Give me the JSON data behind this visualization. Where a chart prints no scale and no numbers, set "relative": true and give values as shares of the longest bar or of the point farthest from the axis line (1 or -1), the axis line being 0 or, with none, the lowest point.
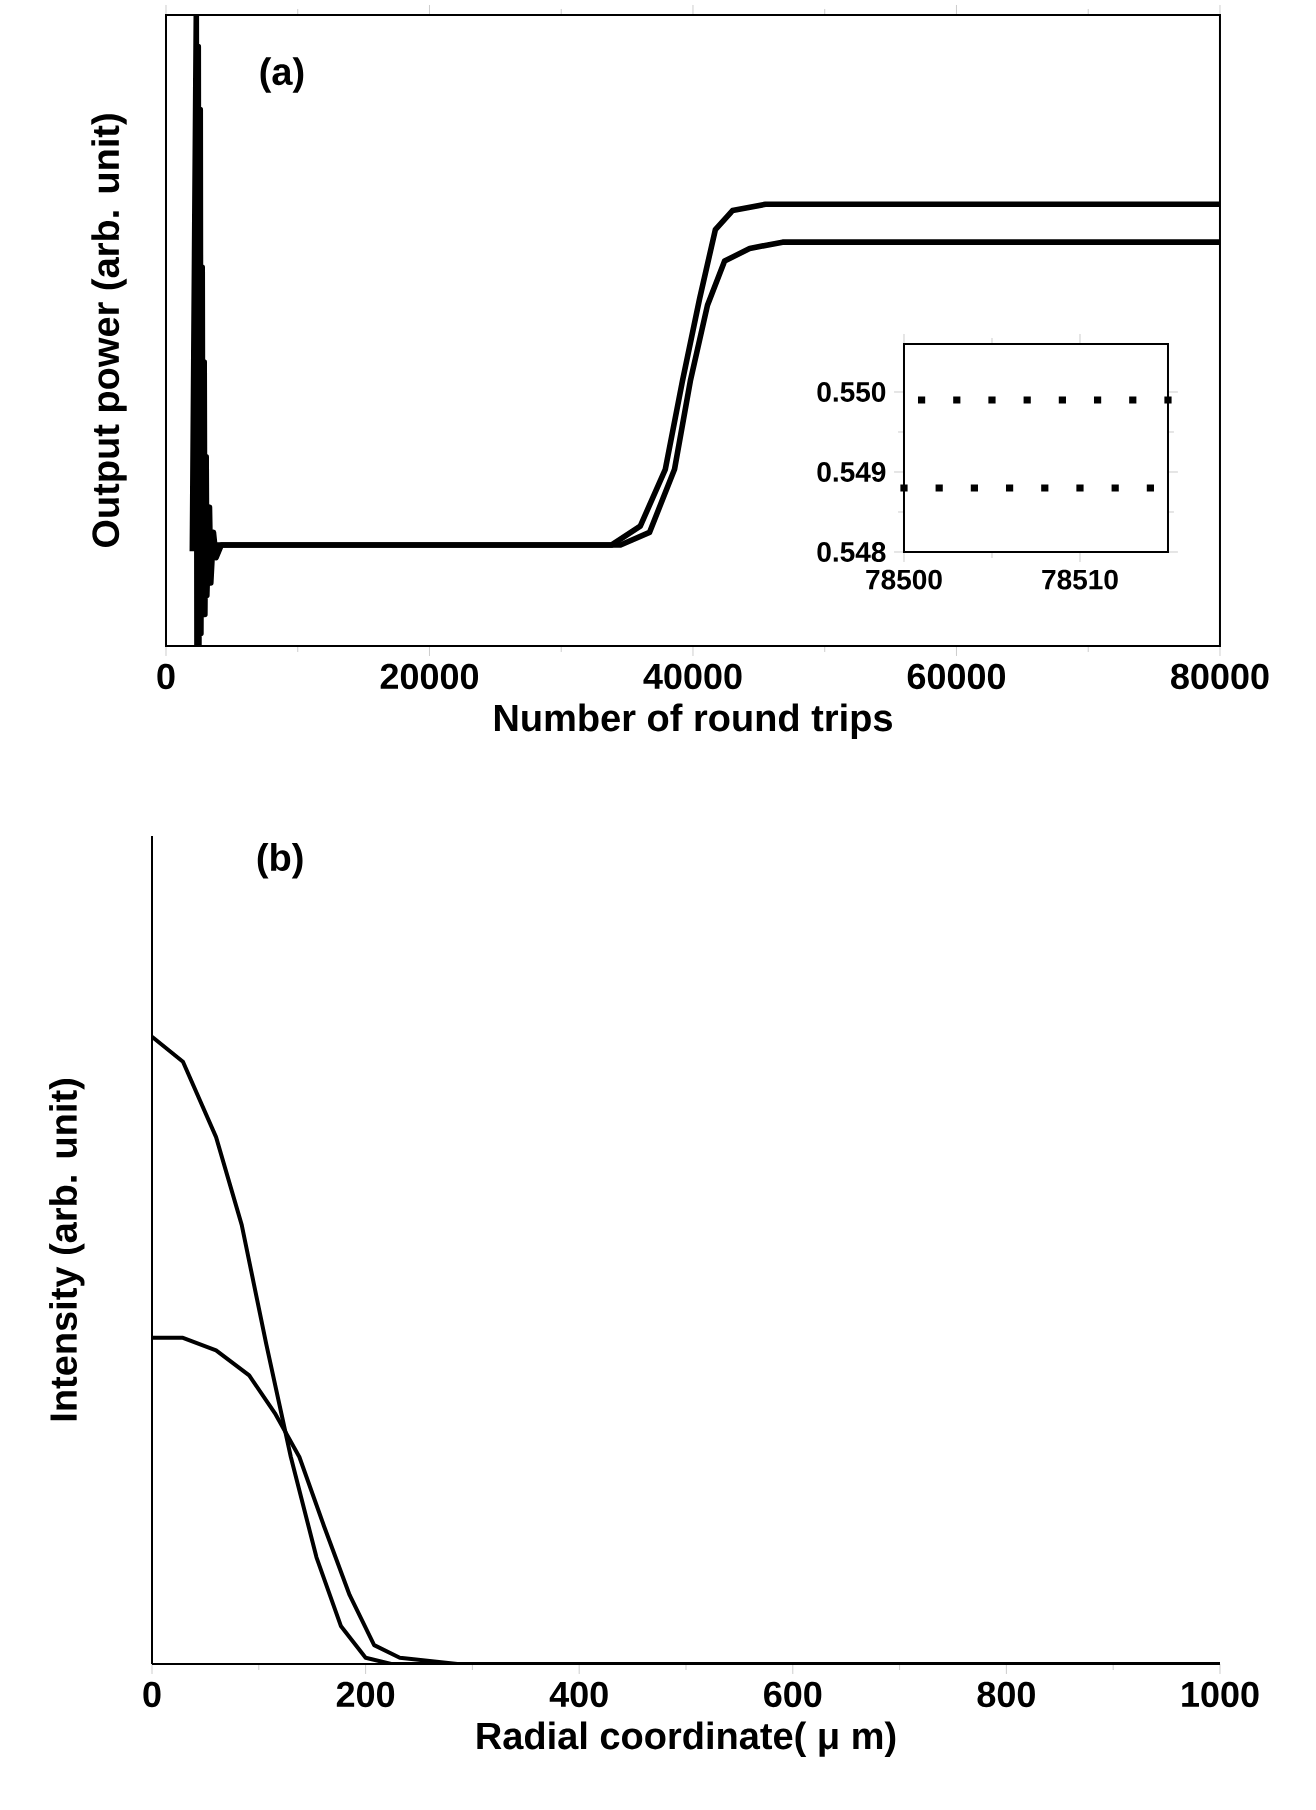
{
  "chart_data": [
    {
      "type": "line",
      "relative": true,
      "xlabel": "Number of round trips",
      "ylabel": "Output power (arb. unit)",
      "annotations": [
        "(a)"
      ],
      "xlim": [
        0,
        80000
      ],
      "xticks": [
        0,
        20000,
        40000,
        60000,
        80000
      ],
      "series": [
        {
          "color": "#000000",
          "x": [
            2000,
            2300,
            2350,
            2450,
            2500,
            2600,
            2650,
            2750,
            2800,
            2900,
            2950,
            3050,
            3100,
            3300,
            3400,
            3600,
            3800,
            4200,
            20000,
            33800,
            36000,
            37900,
            39200,
            40500,
            41700,
            43000,
            45500,
            60000,
            80000
          ],
          "values": [
            0.15,
            1.0,
            0.0,
            0.95,
            0.0,
            0.85,
            0.02,
            0.6,
            0.05,
            0.45,
            0.05,
            0.3,
            0.08,
            0.22,
            0.1,
            0.18,
            0.14,
            0.16,
            0.16,
            0.16,
            0.19,
            0.28,
            0.42,
            0.55,
            0.66,
            0.69,
            0.7,
            0.7,
            0.7
          ]
        },
        {
          "color": "#000000",
          "x": [
            3800,
            20000,
            34500,
            36700,
            38600,
            39800,
            41100,
            42400,
            44300,
            46800,
            60000,
            80000
          ],
          "values": [
            0.16,
            0.16,
            0.16,
            0.18,
            0.28,
            0.42,
            0.54,
            0.61,
            0.63,
            0.64,
            0.64,
            0.64
          ]
        }
      ]
    },
    {
      "type": "scatter",
      "marker": "square",
      "xlim": [
        78500,
        78515
      ],
      "xticks": [
        78500,
        78510
      ],
      "ylim": [
        0.548,
        0.5506
      ],
      "yticks": [
        {
          "value": 0.548,
          "label": "0.548"
        },
        {
          "value": 0.549,
          "label": "0.549"
        },
        {
          "value": 0.55,
          "label": "0.550"
        }
      ],
      "series": [
        {
          "color": "#000000",
          "x": [
            78501,
            78503,
            78505,
            78507,
            78509,
            78511,
            78513,
            78515
          ],
          "values": [
            0.5499,
            0.5499,
            0.5499,
            0.5499,
            0.5499,
            0.5499,
            0.5499,
            0.5499
          ]
        },
        {
          "color": "#000000",
          "x": [
            78500,
            78502,
            78504,
            78506,
            78508,
            78510,
            78512,
            78514
          ],
          "values": [
            0.5488,
            0.5488,
            0.5488,
            0.5488,
            0.5488,
            0.5488,
            0.5488,
            0.5488
          ]
        }
      ]
    },
    {
      "type": "line",
      "relative": true,
      "xlabel": "Radial coordinate( μ m)",
      "ylabel": "Intensity (arb. unit)",
      "annotations": [
        "(b)"
      ],
      "xlim": [
        0,
        1000
      ],
      "xticks": [
        0,
        200,
        400,
        600,
        800,
        1000
      ],
      "series": [
        {
          "color": "#000000",
          "x": [
            0,
            29,
            60,
            84,
            107,
            130,
            154,
            177,
            200,
            224,
            300,
            1000
          ],
          "values": [
            1.0,
            0.96,
            0.84,
            0.7,
            0.51,
            0.33,
            0.17,
            0.06,
            0.01,
            0.0,
            0.0,
            0.0
          ]
        },
        {
          "color": "#000000",
          "x": [
            0,
            29,
            60,
            91,
            115,
            138,
            161,
            185,
            208,
            232,
            286,
            400,
            1000
          ],
          "values": [
            0.52,
            0.52,
            0.5,
            0.46,
            0.4,
            0.33,
            0.22,
            0.11,
            0.03,
            0.01,
            0.0,
            0.0,
            0.0
          ]
        }
      ]
    }
  ]
}
